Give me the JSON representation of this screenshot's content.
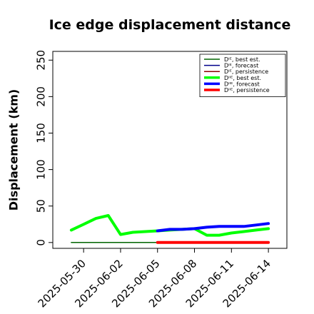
{
  "chart_data": {
    "type": "line",
    "title": "Ice edge displacement distance",
    "ylabel": "Displacement (km)",
    "xlabel": "",
    "ylim": [
      -8,
      262
    ],
    "xlim": [
      "2025-05-27T12:00",
      "2025-06-15T12:00"
    ],
    "yticks": [
      0,
      50,
      100,
      150,
      200,
      250
    ],
    "xticks": [
      {
        "date": "2025-05-30",
        "label": "2025-05-30",
        "color": "#000000"
      },
      {
        "date": "2025-06-02",
        "label": "2025-06-02",
        "color": "#000000"
      },
      {
        "date": "2025-06-05",
        "label": "2025-06-05",
        "color": "#228B22"
      },
      {
        "date": "2025-06-08",
        "label": "2025-06-08",
        "color": "#000000"
      },
      {
        "date": "2025-06-11",
        "label": "2025-06-11",
        "color": "#000000"
      },
      {
        "date": "2025-06-14",
        "label": "2025-06-14",
        "color": "#000000"
      }
    ],
    "legend_position": "top-right",
    "series": [
      {
        "name": "Dᴵᴱ, best est.",
        "color": "#006400",
        "width": 1.5,
        "x": [
          "2025-05-29",
          "2025-06-05"
        ],
        "y": [
          0,
          0
        ]
      },
      {
        "name": "Dᴵᴱ, forecast",
        "color": "#00008B",
        "width": 1.5,
        "x": [],
        "y": []
      },
      {
        "name": "Dᴵᴱ, persistence",
        "color": "#8B0000",
        "width": 1.5,
        "x": [],
        "y": []
      },
      {
        "name": "Dᴵᴵᴱ, best est.",
        "color": "#00FF00",
        "width": 4,
        "x": [
          "2025-05-29",
          "2025-05-30",
          "2025-05-31",
          "2025-06-01",
          "2025-06-02",
          "2025-06-03",
          "2025-06-04",
          "2025-06-05",
          "2025-06-06",
          "2025-06-07",
          "2025-06-08",
          "2025-06-09",
          "2025-06-10",
          "2025-06-11",
          "2025-06-12",
          "2025-06-13",
          "2025-06-14"
        ],
        "y": [
          17,
          25,
          33,
          37,
          11,
          14,
          15,
          16,
          17,
          18,
          19,
          10,
          10,
          13,
          15,
          17,
          19
        ]
      },
      {
        "name": "Dᴵᴵᴱ, forecast",
        "color": "#0000FF",
        "width": 4,
        "x": [
          "2025-06-05",
          "2025-06-06",
          "2025-06-07",
          "2025-06-08",
          "2025-06-09",
          "2025-06-10",
          "2025-06-11",
          "2025-06-12",
          "2025-06-13",
          "2025-06-14"
        ],
        "y": [
          16,
          18,
          18,
          19,
          21,
          22,
          22,
          22,
          24,
          26
        ]
      },
      {
        "name": "Dᴵᴵᴱ, persistence",
        "color": "#FF0000",
        "width": 4,
        "x": [
          "2025-06-05",
          "2025-06-14"
        ],
        "y": [
          0,
          0
        ]
      }
    ]
  }
}
